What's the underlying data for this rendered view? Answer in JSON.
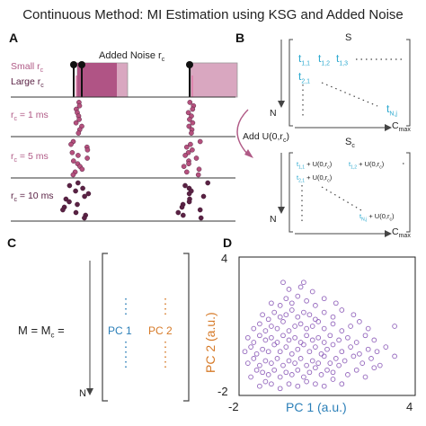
{
  "title": "Continuous Method: MI Estimation using KSG and Added Noise",
  "panels": {
    "a": {
      "letter": "A",
      "added_noise_label": "Added Noise r",
      "added_noise_sub": "c",
      "small_label": "Small r",
      "small_sub": "c",
      "large_label": "Large r",
      "large_sub": "c",
      "rows": [
        {
          "label": "r",
          "sub": "c",
          "suffix": " = 1 ms"
        },
        {
          "label": "r",
          "sub": "c",
          "suffix": " = 5 ms"
        },
        {
          "label": "r",
          "sub": "c",
          "suffix": " = 10 ms"
        }
      ]
    },
    "b": {
      "letter": "B",
      "s_label": "S",
      "sc_label": "S",
      "sc_sub": "c",
      "n_label": "N",
      "cmax_label": "C",
      "cmax_sub": "max",
      "add_label": "Add U(0,r",
      "add_sub": "c",
      "add_close": ")",
      "entries_s": [
        "t",
        "t",
        "t",
        "t",
        "t"
      ],
      "entries_s_subs": [
        "1,1",
        "1,2",
        "1,3",
        "2,1",
        "N,j"
      ],
      "entries_sc": [
        "t",
        "+ U(0,r",
        ")",
        "t",
        "+ U(0,r",
        ")",
        "t",
        "+ U(0,r",
        ")",
        "t",
        "+ U(0,r",
        ")"
      ],
      "entries_sc_subs": [
        "1,1",
        "c",
        "1,2",
        "c",
        "2,1",
        "c",
        "N,j",
        "c"
      ]
    },
    "c": {
      "letter": "C",
      "equation_left": "M =  M",
      "equation_sub": "c",
      "equation_eq": " =",
      "n_label": "N",
      "pc1": "PC 1",
      "pc2": "PC 2"
    },
    "d": {
      "letter": "D",
      "ylabel": "PC 2 (a.u.)",
      "xlabel": "PC 1 (a.u.)"
    }
  },
  "colors": {
    "pink_dot": "#b5517e",
    "dark_dot": "#5a2244",
    "noise_light": "#d49bb8",
    "noise_dark": "#a8457a",
    "cyan": "#2aa8cf",
    "blue": "#2b7fb8",
    "orange": "#d67a28",
    "scatter": "#9467bd"
  },
  "chart_data": {
    "type": "scatter",
    "xlabel": "PC 1 (a.u.)",
    "ylabel": "PC 2 (a.u.)",
    "xlim": [
      -2,
      4
    ],
    "ylim": [
      -2,
      4
    ],
    "x_ticks": [
      "-2",
      "4"
    ],
    "y_ticks": [
      "4",
      "-2"
    ],
    "points_note": "dense cloud centered near (-0.4, 0) with spread up to about (3.3, 2.9)",
    "series": [
      {
        "points": [
          [
            -1.3,
            -1.6
          ],
          [
            -1.1,
            -1.4
          ],
          [
            -0.9,
            -1.5
          ],
          [
            -0.6,
            -1.7
          ],
          [
            -0.3,
            -1.5
          ],
          [
            0.0,
            -1.6
          ],
          [
            0.3,
            -1.4
          ],
          [
            0.6,
            -1.5
          ],
          [
            0.9,
            -1.6
          ],
          [
            1.2,
            -1.3
          ],
          [
            1.5,
            -1.5
          ],
          [
            -1.6,
            -1.2
          ],
          [
            -1.4,
            -0.9
          ],
          [
            -1.2,
            -1.0
          ],
          [
            -1.0,
            -1.1
          ],
          [
            -0.8,
            -0.9
          ],
          [
            -0.6,
            -1.2
          ],
          [
            -0.4,
            -1.0
          ],
          [
            -0.2,
            -1.1
          ],
          [
            0.0,
            -0.9
          ],
          [
            0.2,
            -1.2
          ],
          [
            0.4,
            -1.0
          ],
          [
            0.6,
            -0.8
          ],
          [
            0.8,
            -1.1
          ],
          [
            1.0,
            -0.9
          ],
          [
            1.2,
            -1.0
          ],
          [
            1.4,
            -0.7
          ],
          [
            1.7,
            -1.1
          ],
          [
            2.0,
            -0.9
          ],
          [
            2.3,
            -1.2
          ],
          [
            2.6,
            -0.8
          ],
          [
            -1.7,
            -0.6
          ],
          [
            -1.5,
            -0.4
          ],
          [
            -1.3,
            -0.7
          ],
          [
            -1.1,
            -0.5
          ],
          [
            -0.9,
            -0.6
          ],
          [
            -0.7,
            -0.4
          ],
          [
            -0.5,
            -0.7
          ],
          [
            -0.3,
            -0.5
          ],
          [
            -0.1,
            -0.6
          ],
          [
            0.1,
            -0.4
          ],
          [
            0.3,
            -0.7
          ],
          [
            0.5,
            -0.5
          ],
          [
            0.7,
            -0.6
          ],
          [
            0.9,
            -0.3
          ],
          [
            1.1,
            -0.6
          ],
          [
            1.3,
            -0.4
          ],
          [
            1.6,
            -0.5
          ],
          [
            1.9,
            -0.3
          ],
          [
            2.2,
            -0.6
          ],
          [
            2.5,
            -0.4
          ],
          [
            2.8,
            -0.7
          ],
          [
            -1.8,
            -0.1
          ],
          [
            -1.6,
            0.1
          ],
          [
            -1.4,
            -0.2
          ],
          [
            -1.2,
            0.0
          ],
          [
            -1.0,
            -0.1
          ],
          [
            -0.8,
            0.2
          ],
          [
            -0.6,
            -0.1
          ],
          [
            -0.4,
            0.1
          ],
          [
            -0.2,
            -0.2
          ],
          [
            0.0,
            0.0
          ],
          [
            0.2,
            0.2
          ],
          [
            0.4,
            -0.1
          ],
          [
            0.6,
            0.1
          ],
          [
            0.8,
            -0.2
          ],
          [
            1.0,
            0.0
          ],
          [
            1.2,
            0.2
          ],
          [
            1.5,
            -0.1
          ],
          [
            1.8,
            0.1
          ],
          [
            2.1,
            -0.2
          ],
          [
            2.4,
            0.0
          ],
          [
            2.7,
            -0.1
          ],
          [
            3.0,
            0.1
          ],
          [
            3.3,
            -0.3
          ],
          [
            -1.7,
            0.5
          ],
          [
            -1.5,
            0.3
          ],
          [
            -1.3,
            0.6
          ],
          [
            -1.1,
            0.4
          ],
          [
            -0.9,
            0.5
          ],
          [
            -0.7,
            0.3
          ],
          [
            -0.5,
            0.6
          ],
          [
            -0.3,
            0.4
          ],
          [
            -0.1,
            0.5
          ],
          [
            0.1,
            0.3
          ],
          [
            0.3,
            0.6
          ],
          [
            0.5,
            0.4
          ],
          [
            0.7,
            0.5
          ],
          [
            0.9,
            0.3
          ],
          [
            1.1,
            0.6
          ],
          [
            1.4,
            0.4
          ],
          [
            1.7,
            0.5
          ],
          [
            2.0,
            0.3
          ],
          [
            2.3,
            0.6
          ],
          [
            2.6,
            0.4
          ],
          [
            -1.5,
            0.9
          ],
          [
            -1.3,
            1.1
          ],
          [
            -1.1,
            0.8
          ],
          [
            -0.9,
            1.0
          ],
          [
            -0.7,
            0.9
          ],
          [
            -0.5,
            1.2
          ],
          [
            -0.3,
            0.8
          ],
          [
            -0.1,
            1.0
          ],
          [
            0.1,
            1.1
          ],
          [
            0.3,
            0.9
          ],
          [
            0.5,
            1.0
          ],
          [
            0.7,
            1.2
          ],
          [
            0.9,
            0.9
          ],
          [
            1.2,
            1.1
          ],
          [
            1.5,
            0.8
          ],
          [
            1.8,
            1.0
          ],
          [
            2.1,
            1.2
          ],
          [
            2.4,
            0.9
          ],
          [
            -1.2,
            1.5
          ],
          [
            -1.0,
            1.3
          ],
          [
            -0.8,
            1.6
          ],
          [
            -0.6,
            1.4
          ],
          [
            -0.4,
            1.5
          ],
          [
            -0.2,
            1.7
          ],
          [
            0.0,
            1.4
          ],
          [
            0.2,
            1.6
          ],
          [
            0.4,
            1.5
          ],
          [
            0.6,
            1.3
          ],
          [
            0.9,
            1.6
          ],
          [
            1.2,
            1.4
          ],
          [
            1.5,
            1.7
          ],
          [
            1.9,
            1.5
          ],
          [
            -0.9,
            2.0
          ],
          [
            -0.6,
            1.9
          ],
          [
            -0.4,
            2.2
          ],
          [
            -0.2,
            2.0
          ],
          [
            0.0,
            2.3
          ],
          [
            0.3,
            2.1
          ],
          [
            0.6,
            1.9
          ],
          [
            0.9,
            2.2
          ],
          [
            1.3,
            2.0
          ],
          [
            -0.3,
            2.6
          ],
          [
            0.1,
            2.7
          ],
          [
            0.5,
            2.5
          ],
          [
            -0.5,
            2.9
          ],
          [
            0.2,
            2.9
          ],
          [
            3.3,
            1.0
          ]
        ]
      }
    ]
  }
}
